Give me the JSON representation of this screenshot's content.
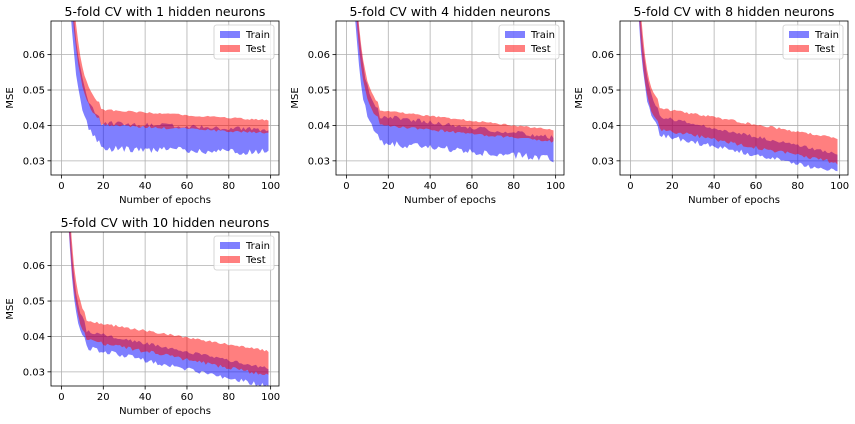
{
  "colors": {
    "train": "#0000ff",
    "test": "#ff0000",
    "grid": "#b0b0b0"
  },
  "chart_data": [
    {
      "type": "area",
      "title": "5-fold CV with 1 hidden neurons",
      "xlabel": "Number of epochs",
      "ylabel": "MSE",
      "xlim": [
        -5,
        104
      ],
      "ylim": [
        0.026,
        0.0695
      ],
      "xticks": [
        0,
        20,
        40,
        60,
        80,
        100
      ],
      "yticks": [
        0.03,
        0.04,
        0.05,
        0.06
      ],
      "ytick_labels": [
        "0.03",
        "0.04",
        "0.05",
        "0.06"
      ],
      "grid": true,
      "legend_position": "top-right",
      "x_range": [
        1,
        99
      ],
      "series": [
        {
          "name": "Train",
          "color": "#0000ff",
          "opacity": 0.5,
          "envelope": {
            "plateau_low": 0.0345,
            "plateau_high": 0.04,
            "end_low": 0.0335,
            "end_high": 0.0382,
            "knee_x": 19,
            "noise": 0.0022
          }
        },
        {
          "name": "Test",
          "color": "#ff0000",
          "opacity": 0.5,
          "envelope": {
            "plateau_low": 0.0405,
            "plateau_high": 0.0442,
            "end_low": 0.0382,
            "end_high": 0.0412,
            "knee_x": 19,
            "noise": 0.0008
          }
        }
      ]
    },
    {
      "type": "area",
      "title": "5-fold CV with 4 hidden neurons",
      "xlabel": "Number of epochs",
      "ylabel": "MSE",
      "xlim": [
        -5,
        104
      ],
      "ylim": [
        0.026,
        0.0695
      ],
      "xticks": [
        0,
        20,
        40,
        60,
        80,
        100
      ],
      "yticks": [
        0.03,
        0.04,
        0.05,
        0.06
      ],
      "ytick_labels": [
        "0.03",
        "0.04",
        "0.05",
        "0.06"
      ],
      "grid": true,
      "legend_position": "top-right",
      "x_range": [
        1,
        99
      ],
      "series": [
        {
          "name": "Train",
          "color": "#0000ff",
          "opacity": 0.5,
          "envelope": {
            "plateau_low": 0.036,
            "plateau_high": 0.042,
            "end_low": 0.0315,
            "end_high": 0.036,
            "knee_x": 16,
            "noise": 0.0022
          }
        },
        {
          "name": "Test",
          "color": "#ff0000",
          "opacity": 0.5,
          "envelope": {
            "plateau_low": 0.0405,
            "plateau_high": 0.044,
            "end_low": 0.0358,
            "end_high": 0.0385,
            "knee_x": 16,
            "noise": 0.0008
          }
        }
      ]
    },
    {
      "type": "area",
      "title": "5-fold CV with 8 hidden neurons",
      "xlabel": "Number of epochs",
      "ylabel": "MSE",
      "xlim": [
        -5,
        104
      ],
      "ylim": [
        0.026,
        0.0695
      ],
      "xticks": [
        0,
        20,
        40,
        60,
        80,
        100
      ],
      "yticks": [
        0.03,
        0.04,
        0.05,
        0.06
      ],
      "ytick_labels": [
        "0.03",
        "0.04",
        "0.05",
        "0.06"
      ],
      "grid": true,
      "legend_position": "top-right",
      "x_range": [
        1,
        99
      ],
      "series": [
        {
          "name": "Train",
          "color": "#0000ff",
          "opacity": 0.5,
          "envelope": {
            "plateau_low": 0.038,
            "plateau_high": 0.042,
            "end_low": 0.0275,
            "end_high": 0.0315,
            "knee_x": 14,
            "noise": 0.0015
          }
        },
        {
          "name": "Test",
          "color": "#ff0000",
          "opacity": 0.5,
          "envelope": {
            "plateau_low": 0.0395,
            "plateau_high": 0.0445,
            "end_low": 0.03,
            "end_high": 0.036,
            "knee_x": 14,
            "noise": 0.0012
          }
        }
      ]
    },
    {
      "type": "area",
      "title": "5-fold CV with 10 hidden neurons",
      "xlabel": "Number of epochs",
      "ylabel": "MSE",
      "xlim": [
        -5,
        104
      ],
      "ylim": [
        0.026,
        0.0695
      ],
      "xticks": [
        0,
        20,
        40,
        60,
        80,
        100
      ],
      "yticks": [
        0.03,
        0.04,
        0.05,
        0.06
      ],
      "ytick_labels": [
        "0.03",
        "0.04",
        "0.05",
        "0.06"
      ],
      "grid": true,
      "legend_position": "top-right",
      "x_range": [
        1,
        99
      ],
      "series": [
        {
          "name": "Train",
          "color": "#0000ff",
          "opacity": 0.5,
          "envelope": {
            "plateau_low": 0.0375,
            "plateau_high": 0.041,
            "end_low": 0.0265,
            "end_high": 0.0305,
            "knee_x": 12,
            "noise": 0.0015
          }
        },
        {
          "name": "Test",
          "color": "#ff0000",
          "opacity": 0.5,
          "envelope": {
            "plateau_low": 0.0395,
            "plateau_high": 0.044,
            "end_low": 0.0295,
            "end_high": 0.0355,
            "knee_x": 12,
            "noise": 0.0012
          }
        }
      ]
    }
  ]
}
